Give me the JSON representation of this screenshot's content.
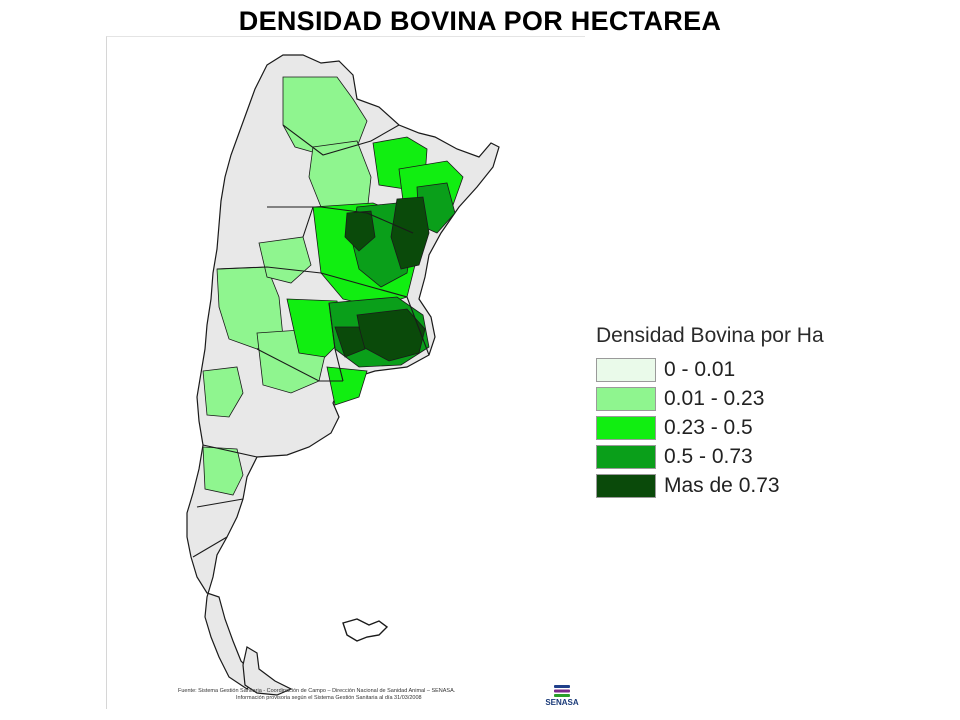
{
  "title": "DENSIDAD BOVINA POR HECTAREA",
  "legend": {
    "title": "Densidad Bovina por Ha",
    "items": [
      {
        "label": "0 - 0.01",
        "color": "#eafaea"
      },
      {
        "label": "0.01 - 0.23",
        "color": "#8ff58f"
      },
      {
        "label": "0.23 - 0.5",
        "color": "#11ee11"
      },
      {
        "label": "0.5 - 0.73",
        "color": "#0a9f1a"
      },
      {
        "label": "Mas de 0.73",
        "color": "#0a4a0a"
      }
    ]
  },
  "source": {
    "line1": "Fuente: Sistema Gestión Sanitaria  -  Coordinación de Campo – Dirección Nacional de Sanidad Animal – SENASA.",
    "line2": "Información provisoria según el Sistema Gestión Sanitaria al día 31/03/2008"
  },
  "logo": {
    "text": "SENASA",
    "colors": [
      "#1f3f8a",
      "#7a2a8a",
      "#2aa02a"
    ]
  },
  "map": {
    "outline_color": "#1a1a1a",
    "background_color": "#e8e8e8"
  }
}
